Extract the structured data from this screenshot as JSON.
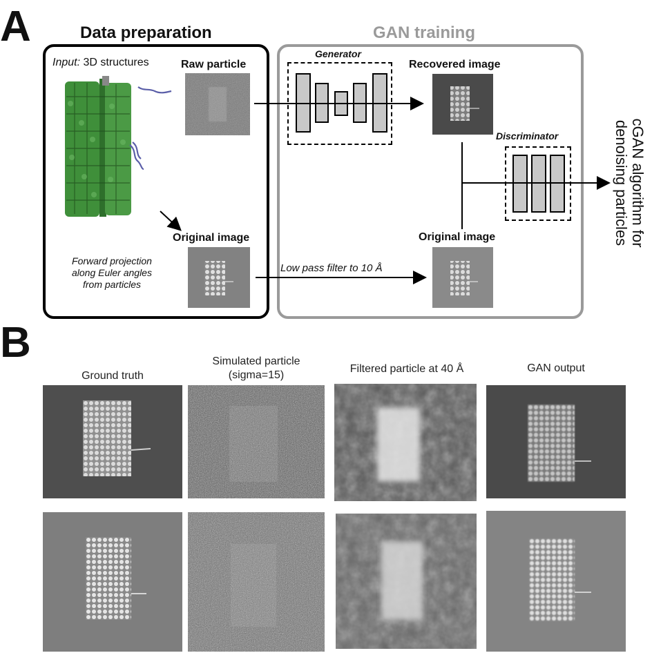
{
  "panel_a": {
    "letter": "A",
    "data_prep": {
      "title": "Data preparation",
      "input_label_italic": "Input:",
      "input_label_rest": " 3D structures",
      "raw_particle": "Raw particle",
      "original_image": "Original image",
      "projection_note": [
        "Forward projection",
        "along Euler angles",
        "from particles"
      ]
    },
    "gan": {
      "title": "GAN training",
      "generator": "Generator",
      "recovered": "Recovered  image",
      "discriminator": "Discriminator",
      "original_image": "Original image",
      "filter_label": "Low pass filter to 10 Å"
    },
    "side_label": [
      "cGAN algorithm for",
      "denoising particles"
    ]
  },
  "panel_b": {
    "letter": "B",
    "columns": [
      {
        "title": [
          "Ground truth"
        ]
      },
      {
        "title": [
          "Simulated particle",
          "(sigma=15)"
        ]
      },
      {
        "title": [
          "Filtered particle at 40 Å"
        ]
      },
      {
        "title": [
          "GAN output"
        ]
      }
    ]
  },
  "colors": {
    "prep_border": "#000000",
    "gan_border": "#9a9a9a",
    "protein_green": "#3f8f3a",
    "dna_blue": "#5a5ea8",
    "layer_fill": "#c8c8c8"
  }
}
